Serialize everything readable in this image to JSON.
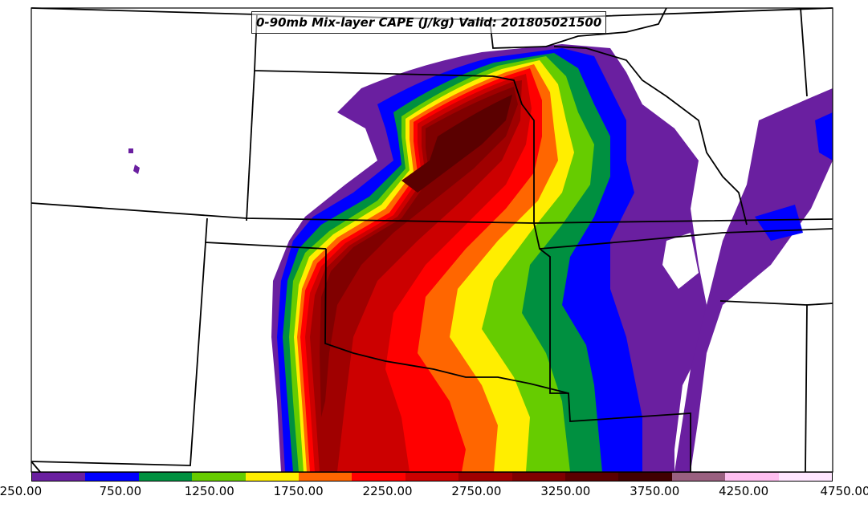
{
  "title": "0-90mb Mix-layer CAPE (J/kg) Valid: 201805021500",
  "colorbar": {
    "colors": [
      "#6a1fa0",
      "#0000ff",
      "#009040",
      "#66cc00",
      "#ffee00",
      "#ff6600",
      "#ff0000",
      "#cc0000",
      "#a00000",
      "#800000",
      "#5a0000",
      "#400000",
      "#9a6080",
      "#ffbff0",
      "#ffe6ff"
    ],
    "tick_labels": [
      "250.00",
      "750.00",
      "1250.00",
      "1750.00",
      "2250.00",
      "2750.00",
      "3250.00",
      "3750.00",
      "4250.00",
      "4750.00"
    ]
  },
  "legend": {
    "min": 250,
    "max": 4750,
    "units": "J/kg"
  }
}
